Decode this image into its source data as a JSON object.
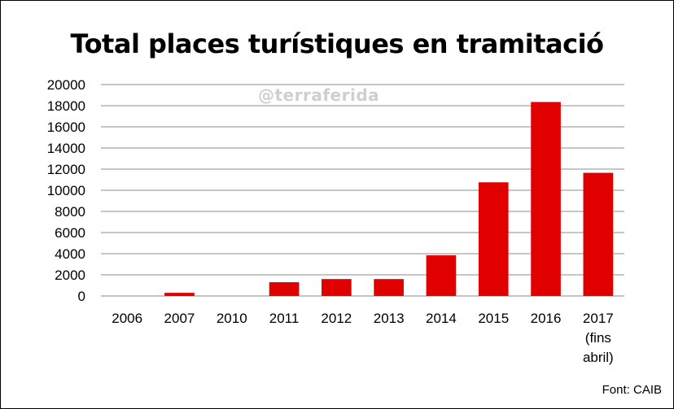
{
  "chart_data": {
    "type": "bar",
    "title": "Total places turístiques en tramitació",
    "categories": [
      "2006",
      "2007",
      "2010",
      "2011",
      "2012",
      "2013",
      "2014",
      "2015",
      "2016",
      "2017"
    ],
    "category_sublabels": [
      "",
      "",
      "",
      "",
      "",
      "",
      "",
      "",
      "",
      "(fins|abril)"
    ],
    "values": [
      0,
      300,
      0,
      1300,
      1600,
      1600,
      3850,
      10750,
      18350,
      11650
    ],
    "ylim": [
      0,
      20000
    ],
    "yticks": [
      0,
      2000,
      4000,
      6000,
      8000,
      10000,
      12000,
      14000,
      16000,
      18000,
      20000
    ],
    "grid": true,
    "bar_color": "#e00000",
    "watermark": "@terraferida",
    "source": "Font: CAIB"
  }
}
